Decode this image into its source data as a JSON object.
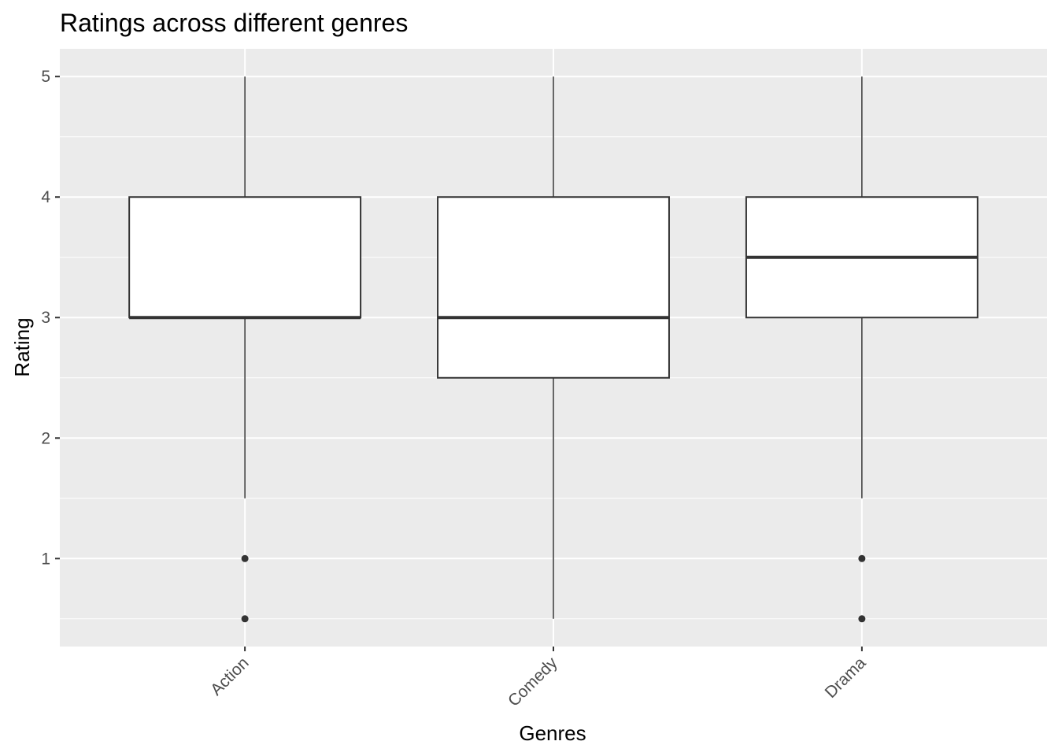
{
  "chart_data": {
    "type": "boxplot",
    "title": "Ratings across different genres",
    "xlabel": "Genres",
    "ylabel": "Rating",
    "ylim": [
      0.27,
      5.23
    ],
    "y_ticks": [
      1,
      2,
      3,
      4,
      5
    ],
    "y_tick_labels": [
      "1",
      "2",
      "3",
      "4",
      "5"
    ],
    "categories": [
      "Action",
      "Comedy",
      "Drama"
    ],
    "boxes": [
      {
        "category": "Action",
        "whisker_low": 1.5,
        "q1": 3.0,
        "median": 3.0,
        "q3": 4.0,
        "whisker_high": 5.0,
        "outliers": [
          1.0,
          0.5
        ]
      },
      {
        "category": "Comedy",
        "whisker_low": 0.5,
        "q1": 2.5,
        "median": 3.0,
        "q3": 4.0,
        "whisker_high": 5.0,
        "outliers": []
      },
      {
        "category": "Drama",
        "whisker_low": 1.5,
        "q1": 3.0,
        "median": 3.5,
        "q3": 4.0,
        "whisker_high": 5.0,
        "outliers": [
          1.0,
          0.5
        ]
      }
    ],
    "grid": true,
    "legend": "none",
    "x_tick_label_rotation": "45 degrees",
    "colors": {
      "panel_background": "#ebebeb",
      "grid_line": "#ffffff",
      "box_fill": "#ffffff",
      "box_stroke": "#333333",
      "tick_text": "#4d4d4d",
      "tick_mark": "#333333"
    }
  }
}
